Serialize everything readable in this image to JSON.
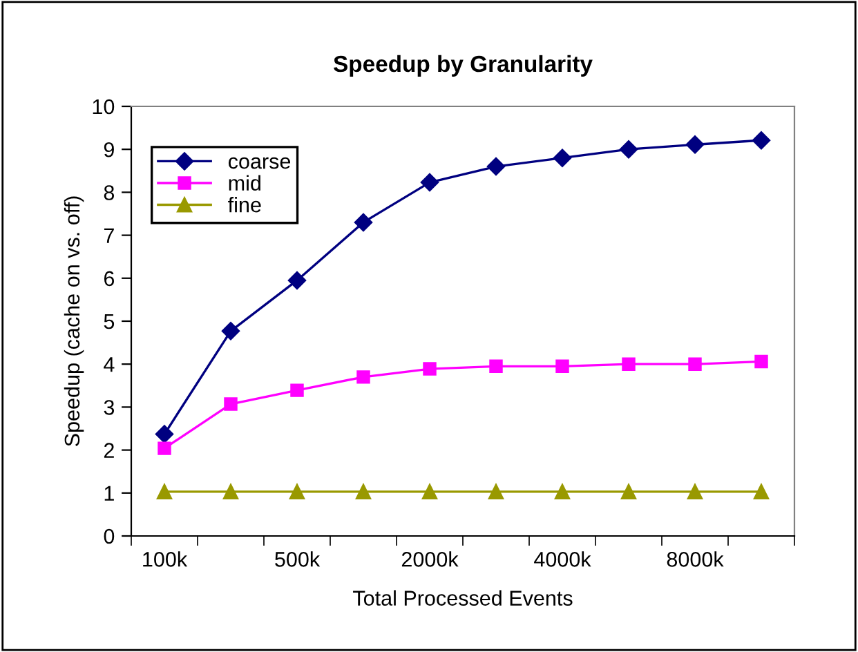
{
  "chart_data": {
    "type": "line",
    "title": "Speedup by Granularity",
    "xlabel": "Total Processed Events",
    "ylabel": "Speedup (cache on vs. off)",
    "categories": [
      "100k",
      null,
      "500k",
      null,
      "2000k",
      null,
      "4000k",
      null,
      "8000k",
      null
    ],
    "series": [
      {
        "name": "coarse",
        "color": "#000080",
        "marker": "diamond",
        "values": [
          2.37,
          4.77,
          5.95,
          7.3,
          8.23,
          8.6,
          8.8,
          9.0,
          9.11,
          9.21
        ]
      },
      {
        "name": "mid",
        "color": "#ff00ff",
        "marker": "square",
        "values": [
          2.04,
          3.07,
          3.39,
          3.7,
          3.89,
          3.95,
          3.95,
          4.0,
          4.0,
          4.06
        ]
      },
      {
        "name": "fine",
        "color": "#999900",
        "marker": "triangle",
        "values": [
          1.03,
          1.03,
          1.03,
          1.03,
          1.03,
          1.03,
          1.03,
          1.03,
          1.03,
          1.03
        ]
      }
    ],
    "ylim": [
      0,
      10
    ],
    "yticks": [
      0,
      1,
      2,
      3,
      4,
      5,
      6,
      7,
      8,
      9,
      10
    ],
    "grid": false,
    "legend": "top left",
    "line_style": "solid"
  }
}
